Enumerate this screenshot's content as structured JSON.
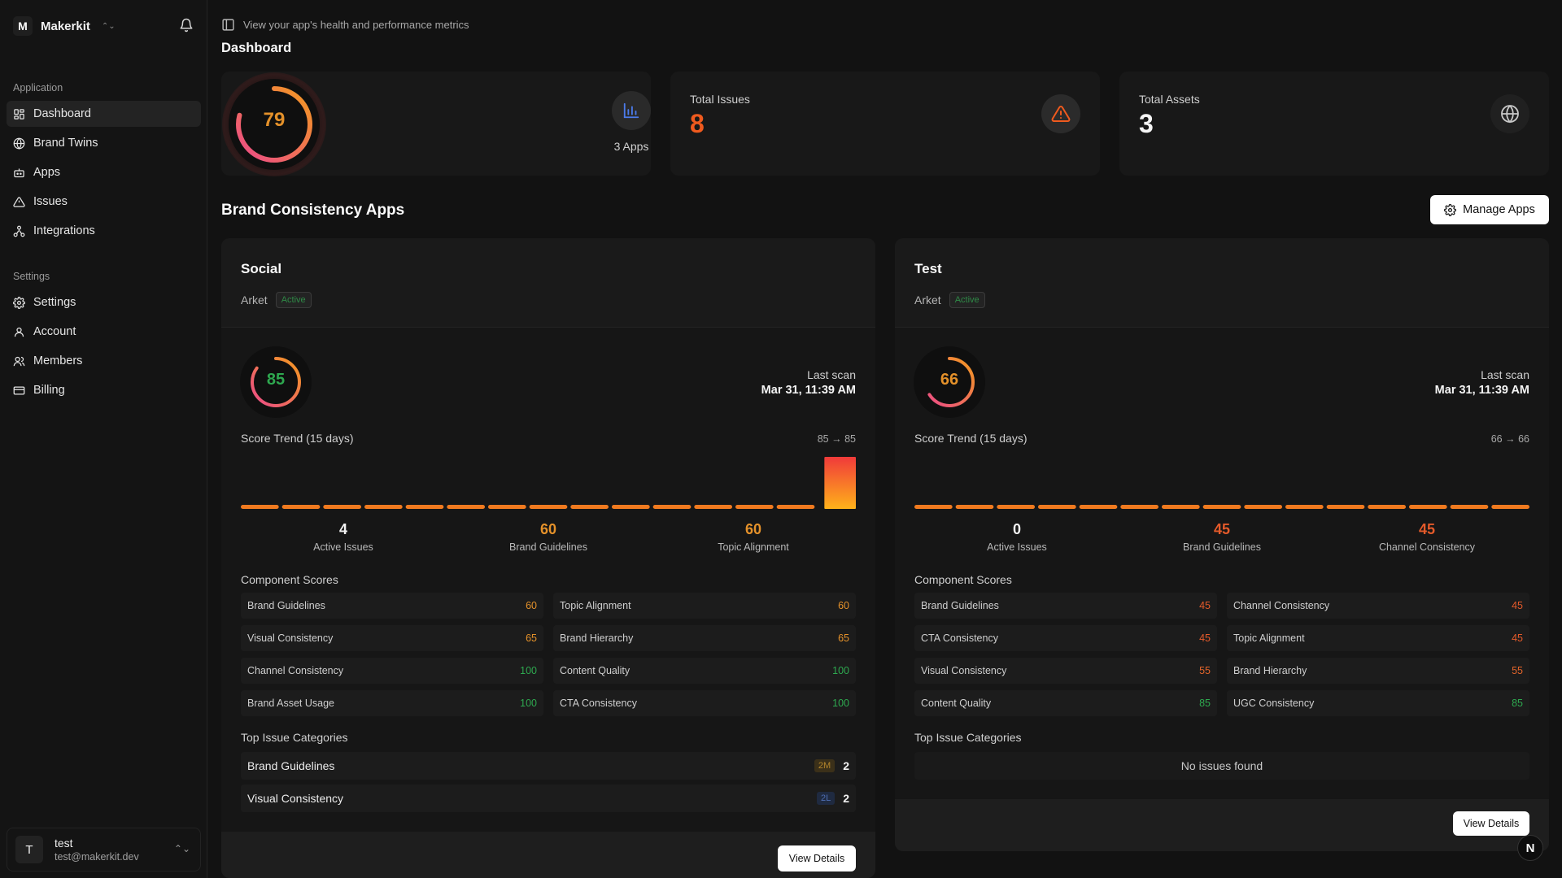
{
  "sidebar": {
    "org": {
      "initial": "M",
      "name": "Makerkit"
    },
    "application_label": "Application",
    "application_items": [
      {
        "label": "Dashboard",
        "icon": "dashboard-icon"
      },
      {
        "label": "Brand Twins",
        "icon": "globe-icon"
      },
      {
        "label": "Apps",
        "icon": "bot-icon"
      },
      {
        "label": "Issues",
        "icon": "warning-icon"
      },
      {
        "label": "Integrations",
        "icon": "integrations-icon"
      }
    ],
    "settings_label": "Settings",
    "settings_items": [
      {
        "label": "Settings",
        "icon": "gear-icon"
      },
      {
        "label": "Account",
        "icon": "user-icon"
      },
      {
        "label": "Members",
        "icon": "users-icon"
      },
      {
        "label": "Billing",
        "icon": "card-icon"
      }
    ],
    "user": {
      "initial": "T",
      "name": "test",
      "email": "test@makerkit.dev"
    }
  },
  "header": {
    "subtitle": "View your app's health and performance metrics",
    "title": "Dashboard"
  },
  "stats": {
    "score": {
      "value": "79",
      "apps_label": "3 Apps"
    },
    "issues": {
      "label": "Total Issues",
      "value": "8"
    },
    "assets": {
      "label": "Total Assets",
      "value": "3"
    }
  },
  "section": {
    "title": "Brand Consistency Apps",
    "manage_label": "Manage Apps"
  },
  "apps": [
    {
      "name": "Social",
      "org": "Arket",
      "status": "Active",
      "score": "85",
      "score_fraction": 0.85,
      "score_color": "#2ea84f",
      "last_scan_label": "Last scan",
      "last_scan": "Mar 31, 11:39 AM",
      "trend_label": "Score Trend (15 days)",
      "trend_range": "85 → 85",
      "trend": [
        1,
        1,
        1,
        1,
        1,
        1,
        1,
        1,
        1,
        1,
        1,
        1,
        1,
        1,
        0.85
      ],
      "metrics": [
        {
          "value": "4",
          "label": "Active Issues",
          "color": "#f2f2f2"
        },
        {
          "value": "60",
          "label": "Brand Guidelines",
          "color": "#e4912a"
        },
        {
          "value": "60",
          "label": "Topic Alignment",
          "color": "#e4912a"
        }
      ],
      "components_label": "Component Scores",
      "components": [
        {
          "name": "Brand Guidelines",
          "score": "60",
          "color": "#e4912a"
        },
        {
          "name": "Topic Alignment",
          "score": "60",
          "color": "#e4912a"
        },
        {
          "name": "Visual Consistency",
          "score": "65",
          "color": "#e4912a"
        },
        {
          "name": "Brand Hierarchy",
          "score": "65",
          "color": "#e4912a"
        },
        {
          "name": "Channel Consistency",
          "score": "100",
          "color": "#2ea84f"
        },
        {
          "name": "Content Quality",
          "score": "100",
          "color": "#2ea84f"
        },
        {
          "name": "Brand Asset Usage",
          "score": "100",
          "color": "#2ea84f"
        },
        {
          "name": "CTA Consistency",
          "score": "100",
          "color": "#2ea84f"
        }
      ],
      "issues_label": "Top Issue Categories",
      "issues": [
        {
          "name": "Brand Guidelines",
          "severity": "2M",
          "sev_class": "m",
          "count": "2"
        },
        {
          "name": "Visual Consistency",
          "severity": "2L",
          "sev_class": "l",
          "count": "2"
        }
      ],
      "no_issues": "",
      "view_label": "View Details"
    },
    {
      "name": "Test",
      "org": "Arket",
      "status": "Active",
      "score": "66",
      "score_fraction": 0.66,
      "score_color": "#e4912a",
      "last_scan_label": "Last scan",
      "last_scan": "Mar 31, 11:39 AM",
      "trend_label": "Score Trend (15 days)",
      "trend_range": "66 → 66",
      "trend": [
        1,
        1,
        1,
        1,
        1,
        1,
        1,
        1,
        1,
        1,
        1,
        1,
        1,
        1,
        1
      ],
      "metrics": [
        {
          "value": "0",
          "label": "Active Issues",
          "color": "#f2f2f2"
        },
        {
          "value": "45",
          "label": "Brand Guidelines",
          "color": "#e45a2a"
        },
        {
          "value": "45",
          "label": "Channel Consistency",
          "color": "#e45a2a"
        }
      ],
      "components_label": "Component Scores",
      "components": [
        {
          "name": "Brand Guidelines",
          "score": "45",
          "color": "#e45a2a"
        },
        {
          "name": "Channel Consistency",
          "score": "45",
          "color": "#e45a2a"
        },
        {
          "name": "CTA Consistency",
          "score": "45",
          "color": "#e45a2a"
        },
        {
          "name": "Topic Alignment",
          "score": "45",
          "color": "#e45a2a"
        },
        {
          "name": "Visual Consistency",
          "score": "55",
          "color": "#e4652a"
        },
        {
          "name": "Brand Hierarchy",
          "score": "55",
          "color": "#e4652a"
        },
        {
          "name": "Content Quality",
          "score": "85",
          "color": "#2ea84f"
        },
        {
          "name": "UGC Consistency",
          "score": "85",
          "color": "#2ea84f"
        }
      ],
      "issues_label": "Top Issue Categories",
      "issues": [],
      "no_issues": "No issues found",
      "view_label": "View Details"
    }
  ],
  "fab": {
    "label": "N"
  }
}
